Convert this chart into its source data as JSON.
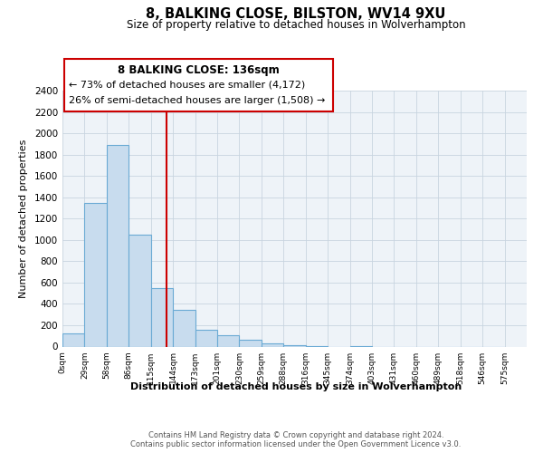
{
  "title": "8, BALKING CLOSE, BILSTON, WV14 9XU",
  "subtitle": "Size of property relative to detached houses in Wolverhampton",
  "xlabel": "Distribution of detached houses by size in Wolverhampton",
  "ylabel": "Number of detached properties",
  "footer1": "Contains HM Land Registry data © Crown copyright and database right 2024.",
  "footer2": "Contains public sector information licensed under the Open Government Licence v3.0.",
  "bin_labels": [
    "0sqm",
    "29sqm",
    "58sqm",
    "86sqm",
    "115sqm",
    "144sqm",
    "173sqm",
    "201sqm",
    "230sqm",
    "259sqm",
    "288sqm",
    "316sqm",
    "345sqm",
    "374sqm",
    "403sqm",
    "431sqm",
    "460sqm",
    "489sqm",
    "518sqm",
    "546sqm",
    "575sqm"
  ],
  "bar_values": [
    125,
    1350,
    1890,
    1050,
    550,
    340,
    160,
    105,
    60,
    30,
    15,
    5,
    0,
    5,
    0,
    0,
    0,
    0,
    0,
    0
  ],
  "bar_color": "#c8dcee",
  "bar_edge_color": "#6aaad4",
  "vline_x": 136,
  "vline_color": "#cc0000",
  "annotation_title": "8 BALKING CLOSE: 136sqm",
  "annotation_line1": "← 73% of detached houses are smaller (4,172)",
  "annotation_line2": "26% of semi-detached houses are larger (1,508) →",
  "annotation_box_edge": "#cc0000",
  "ylim": [
    0,
    2400
  ],
  "yticks": [
    0,
    200,
    400,
    600,
    800,
    1000,
    1200,
    1400,
    1600,
    1800,
    2000,
    2200,
    2400
  ],
  "bg_color": "#ffffff",
  "plot_bg": "#eef3f8",
  "grid_color": "#c8d4e0",
  "bin_width": 29
}
